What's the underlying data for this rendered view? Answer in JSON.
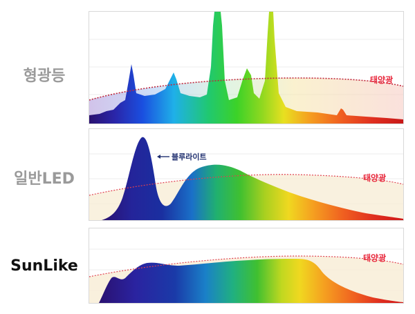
{
  "labels": {
    "fluorescent": "형광등",
    "led": "일반LED",
    "sunlike": "SunLike"
  },
  "sunlight_label": "태양광",
  "bluelight_label": "블루라이트",
  "colors": {
    "row_label_gray": "#9a9a9a",
    "row_label_dark": "#111111",
    "sunlight_red": "#e8283c",
    "annotation_navy": "#1f2f6f",
    "sun_fill": "#f7ecd4"
  }
}
